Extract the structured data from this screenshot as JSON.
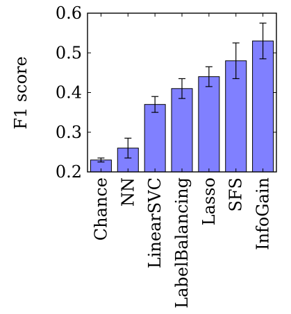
{
  "chart_data": {
    "type": "bar",
    "title": "",
    "xlabel": "",
    "ylabel": "F1 score",
    "ylim": [
      0.2,
      0.6
    ],
    "yticks": [
      0.2,
      0.3,
      0.4,
      0.5,
      0.6
    ],
    "ytick_labels": [
      "0.2",
      "0.3",
      "0.4",
      "0.5",
      "0.6"
    ],
    "categories": [
      "Chance",
      "NN",
      "LinearSVC",
      "LabelBalancing",
      "Lasso",
      "SFS",
      "InfoGain"
    ],
    "values": [
      0.23,
      0.26,
      0.37,
      0.41,
      0.44,
      0.48,
      0.53
    ],
    "error": [
      0.005,
      0.025,
      0.02,
      0.025,
      0.025,
      0.045,
      0.045
    ],
    "grid": false,
    "colors": {
      "bar_fill": "#8080ff",
      "bar_stroke": "#000000",
      "error_bar": "#000000"
    }
  }
}
